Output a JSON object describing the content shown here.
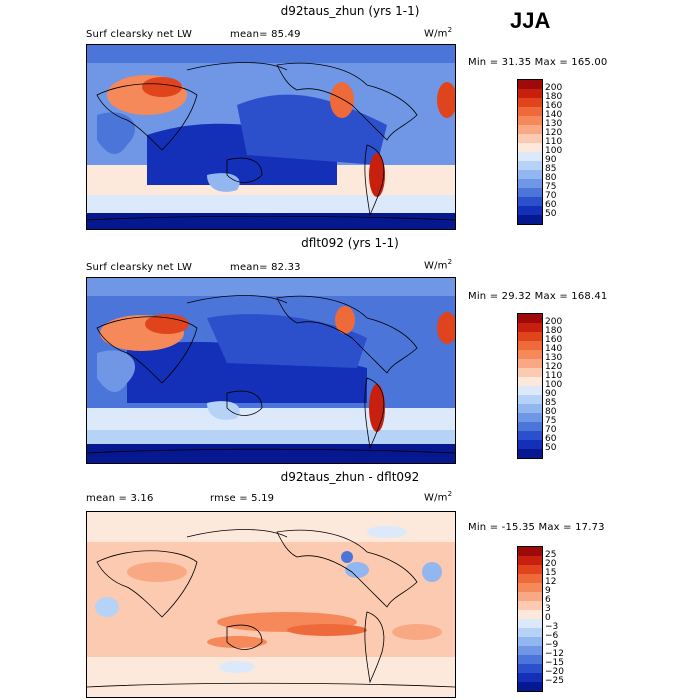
{
  "season": "JJA",
  "units_base": "W/m",
  "units_exp": "2",
  "panels": [
    {
      "title": "d92taus_zhun (yrs 1-1)",
      "field": "Surf clearsky net LW",
      "stat1": "mean=  85.49",
      "stat2": "",
      "minmax": "Min =  31.35 Max = 165.00",
      "levels": [
        "200",
        "180",
        "160",
        "140",
        "130",
        "120",
        "110",
        "100",
        "90",
        "85",
        "80",
        "75",
        "70",
        "60",
        "50"
      ],
      "colors": [
        "#9e0a0a",
        "#c8200f",
        "#e0441c",
        "#ef6a3a",
        "#f5895a",
        "#f8a983",
        "#fbcab0",
        "#fde8dc",
        "#dbe9fb",
        "#b7d2f7",
        "#92b6ef",
        "#6f97e6",
        "#4c75da",
        "#2c4fcc",
        "#1430b8",
        "#05188f"
      ]
    },
    {
      "title": "dflt092 (yrs 1-1)",
      "field": "Surf clearsky net LW",
      "stat1": "mean=  82.33",
      "stat2": "",
      "minmax": "Min =  29.32 Max = 168.41",
      "levels": [
        "200",
        "180",
        "160",
        "140",
        "130",
        "120",
        "110",
        "100",
        "90",
        "85",
        "80",
        "75",
        "70",
        "60",
        "50"
      ],
      "colors": [
        "#9e0a0a",
        "#c8200f",
        "#e0441c",
        "#ef6a3a",
        "#f5895a",
        "#f8a983",
        "#fbcab0",
        "#fde8dc",
        "#dbe9fb",
        "#b7d2f7",
        "#92b6ef",
        "#6f97e6",
        "#4c75da",
        "#2c4fcc",
        "#1430b8",
        "#05188f"
      ]
    },
    {
      "title": "d92taus_zhun - dflt092",
      "field": "mean =   3.16",
      "stat1": "",
      "stat2": "rmse =   5.19",
      "minmax": "Min = -15.35 Max =  17.73",
      "levels": [
        "25",
        "20",
        "15",
        "12",
        "9",
        "6",
        "3",
        "0",
        "−3",
        "−6",
        "−9",
        "−12",
        "−15",
        "−20",
        "−25"
      ],
      "colors": [
        "#9e0a0a",
        "#c8200f",
        "#e0441c",
        "#ef6a3a",
        "#f5895a",
        "#f8a983",
        "#fbcab0",
        "#fde8dc",
        "#dbe9fb",
        "#b7d2f7",
        "#92b6ef",
        "#6f97e6",
        "#4c75da",
        "#2c4fcc",
        "#1430b8",
        "#05188f"
      ]
    }
  ],
  "chart_data": [
    {
      "type": "heatmap",
      "title": "d92taus_zhun (yrs 1-1)",
      "variable": "Surf clearsky net LW",
      "units": "W/m2",
      "season": "JJA",
      "mean": 85.49,
      "min": 31.35,
      "max": 165.0,
      "contour_levels": [
        50,
        60,
        70,
        75,
        80,
        85,
        90,
        100,
        110,
        120,
        130,
        140,
        160,
        180,
        200
      ]
    },
    {
      "type": "heatmap",
      "title": "dflt092 (yrs 1-1)",
      "variable": "Surf clearsky net LW",
      "units": "W/m2",
      "season": "JJA",
      "mean": 82.33,
      "min": 29.32,
      "max": 168.41,
      "contour_levels": [
        50,
        60,
        70,
        75,
        80,
        85,
        90,
        100,
        110,
        120,
        130,
        140,
        160,
        180,
        200
      ]
    },
    {
      "type": "heatmap",
      "title": "d92taus_zhun - dflt092",
      "units": "W/m2",
      "season": "JJA",
      "mean": 3.16,
      "rmse": 5.19,
      "min": -15.35,
      "max": 17.73,
      "contour_levels": [
        -25,
        -20,
        -15,
        -12,
        -9,
        -6,
        -3,
        0,
        3,
        6,
        9,
        12,
        15,
        20,
        25
      ]
    }
  ]
}
